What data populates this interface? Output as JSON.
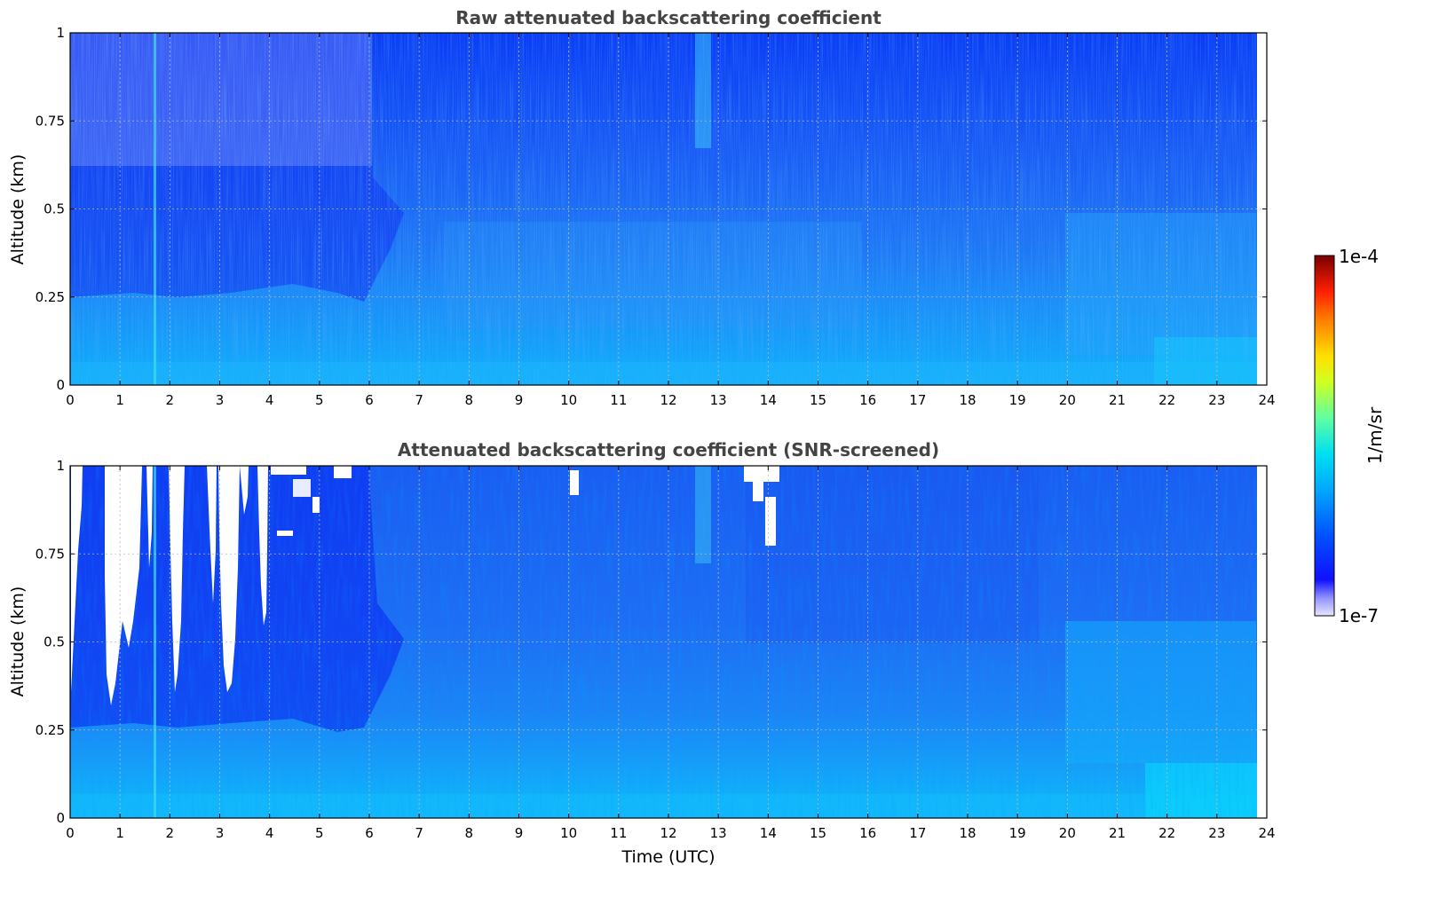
{
  "chart_data": [
    {
      "type": "heatmap",
      "title": "Raw attenuated backscattering coefficient",
      "xlabel": "",
      "ylabel": "Altitude (km)",
      "xlim": [
        0,
        24
      ],
      "ylim": [
        0,
        1
      ],
      "x_ticks": [
        "0",
        "1",
        "2",
        "3",
        "4",
        "5",
        "6",
        "7",
        "8",
        "9",
        "10",
        "11",
        "12",
        "13",
        "14",
        "15",
        "16",
        "17",
        "18",
        "19",
        "20",
        "21",
        "22",
        "23",
        "24"
      ],
      "y_ticks": [
        "0",
        "0.25",
        "0.5",
        "0.75",
        "1"
      ],
      "data_time_extent_hours": [
        0,
        23.8
      ],
      "grid": true,
      "screened": false
    },
    {
      "type": "heatmap",
      "title": "Attenuated backscattering coefficient (SNR-screened)",
      "xlabel": "Time (UTC)",
      "ylabel": "Altitude (km)",
      "xlim": [
        0,
        24
      ],
      "ylim": [
        0,
        1
      ],
      "x_ticks": [
        "0",
        "1",
        "2",
        "3",
        "4",
        "5",
        "6",
        "7",
        "8",
        "9",
        "10",
        "11",
        "12",
        "13",
        "14",
        "15",
        "16",
        "17",
        "18",
        "19",
        "20",
        "21",
        "22",
        "23",
        "24"
      ],
      "y_ticks": [
        "0",
        "0.25",
        "0.5",
        "0.75",
        "1"
      ],
      "data_time_extent_hours": [
        0,
        23.8
      ],
      "grid": true,
      "screened": true
    }
  ],
  "colorbar": {
    "min_label": "1e-7",
    "max_label": "1e-4",
    "unit": "1/m/sr",
    "colormap": "jet",
    "scale": "log"
  }
}
